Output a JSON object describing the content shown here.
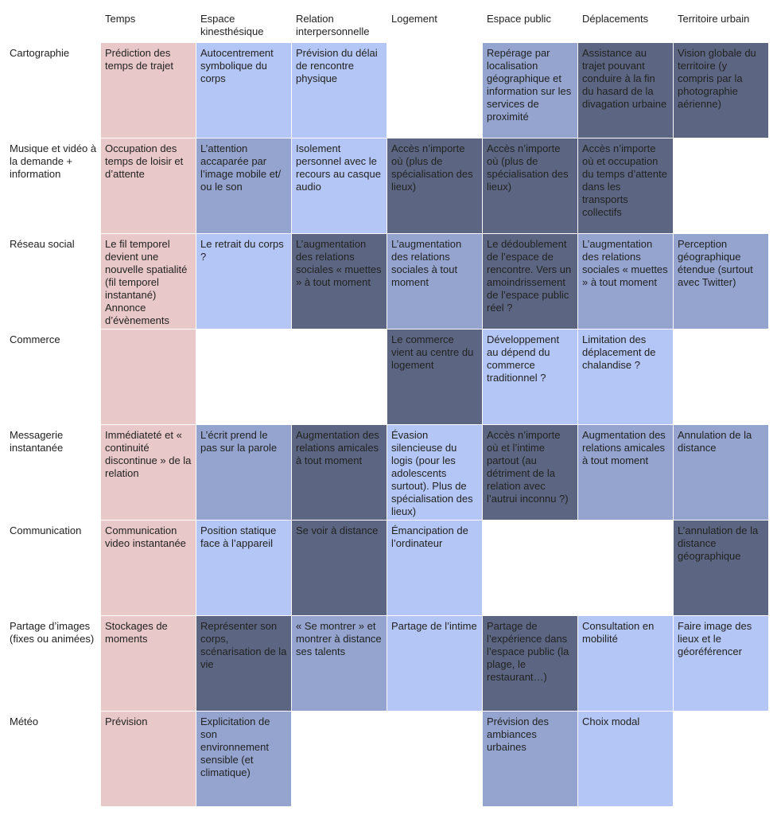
{
  "columns": [
    "Temps",
    "Espace kinesthésique",
    "Relation interpersonnelle",
    "Logement",
    "Espace public",
    "Déplacements",
    "Territoire urbain"
  ],
  "palette": {
    "pink": "#e9c8c9",
    "light": "#b4c6f6",
    "mid": "#94a4cf",
    "dark": "#5c6682",
    "empty": "#ffffff"
  },
  "rows": [
    {
      "label": "Cartographie",
      "cells": [
        {
          "text": "Prédiction des temps de trajet",
          "tone": "pink"
        },
        {
          "text": "Autocentrement symbolique du corps",
          "tone": "light"
        },
        {
          "text": "Prévision du délai de rencontre physique",
          "tone": "light"
        },
        {
          "text": "",
          "tone": "empty"
        },
        {
          "text": "Repérage par localisation géographique et information sur les services de proximité",
          "tone": "mid"
        },
        {
          "text": "Assistance au trajet pouvant conduire à la fin du hasard de la divagation urbaine",
          "tone": "dark"
        },
        {
          "text": "Vision globale du territoire (y compris par la photographie aérienne)",
          "tone": "dark"
        }
      ]
    },
    {
      "label": "Musique et vidéo à la demande + information",
      "cells": [
        {
          "text": "Occupation des temps de loisir et d’attente",
          "tone": "pink"
        },
        {
          "text": "L’attention accaparée par l’image mobile et/ ou le son",
          "tone": "mid"
        },
        {
          "text": "Isolement personnel avec le recours au casque audio",
          "tone": "light"
        },
        {
          "text": "Accès n’importe où (plus de spécialisation des lieux)",
          "tone": "dark"
        },
        {
          "text": "Accès n’importe où (plus de spécialisation des lieux)",
          "tone": "dark"
        },
        {
          "text": "Accès n’importe où et occupation du temps d’attente dans les transports collectifs",
          "tone": "dark"
        },
        {
          "text": "",
          "tone": "empty"
        }
      ]
    },
    {
      "label": "Réseau social",
      "cells": [
        {
          "text": "Le fil temporel devient une nouvelle spatialité (fil temporel instantané) Annonce d’évènements",
          "tone": "pink"
        },
        {
          "text": "Le retrait du corps ?",
          "tone": "light"
        },
        {
          "text": "L’augmentation des relations sociales « muettes » à tout moment",
          "tone": "dark"
        },
        {
          "text": "L’augmentation des relations sociales à tout moment",
          "tone": "mid"
        },
        {
          "text": "Le dédoublement de l’espace de rencontre. Vers un amoindrissement de l’espace public réel ?",
          "tone": "dark"
        },
        {
          "text": "L’augmentation des relations sociales « muettes » à tout moment",
          "tone": "mid"
        },
        {
          "text": "Perception géographique étendue (surtout avec Twitter)",
          "tone": "mid"
        }
      ]
    },
    {
      "label": "Commerce",
      "cells": [
        {
          "text": "",
          "tone": "pink"
        },
        {
          "text": "",
          "tone": "empty"
        },
        {
          "text": "",
          "tone": "empty"
        },
        {
          "text": "Le commerce vient au centre du logement",
          "tone": "dark"
        },
        {
          "text": "Développement au dépend du commerce traditionnel ?",
          "tone": "light"
        },
        {
          "text": "Limitation des déplacement de chalandise ?",
          "tone": "light"
        },
        {
          "text": "",
          "tone": "empty"
        }
      ]
    },
    {
      "label": "Messagerie instantanée",
      "cells": [
        {
          "text": "Immédiateté et « continuité discontinue » de la relation",
          "tone": "pink"
        },
        {
          "text": "L’écrit prend le pas sur la parole",
          "tone": "mid"
        },
        {
          "text": "Augmentation des relations amicales à tout moment",
          "tone": "dark"
        },
        {
          "text": "Évasion silencieuse du logis (pour les adolescents surtout). Plus de spécialisation des lieux)",
          "tone": "light"
        },
        {
          "text": "Accès n’importe où et l’intime partout (au détriment de la relation avec l’autrui inconnu ?)",
          "tone": "dark"
        },
        {
          "text": "Augmentation des relations amicales à tout moment",
          "tone": "mid"
        },
        {
          "text": "Annulation de la distance",
          "tone": "mid"
        }
      ]
    },
    {
      "label": "Communication",
      "cells": [
        {
          "text": "Communication video instantanée",
          "tone": "pink"
        },
        {
          "text": "Position statique face à l’appareil",
          "tone": "light"
        },
        {
          "text": "Se voir à distance",
          "tone": "dark"
        },
        {
          "text": "Émancipation de l’ordinateur",
          "tone": "light"
        },
        {
          "text": "",
          "tone": "empty"
        },
        {
          "text": "",
          "tone": "empty"
        },
        {
          "text": "L’annulation de la distance géographique",
          "tone": "dark"
        }
      ]
    },
    {
      "label": "Partage d’images (fixes ou animées)",
      "cells": [
        {
          "text": "Stockages de moments",
          "tone": "pink"
        },
        {
          "text": "Représenter son corps, scénarisation de la vie",
          "tone": "dark"
        },
        {
          "text": "« Se montrer » et montrer à distance ses talents",
          "tone": "mid"
        },
        {
          "text": "Partage de l’intime",
          "tone": "light"
        },
        {
          "text": "Partage de l’expérience dans l’espace public (la plage, le restaurant…)",
          "tone": "dark"
        },
        {
          "text": "Consultation en mobilité",
          "tone": "light"
        },
        {
          "text": "Faire image des lieux et le géoréférencer",
          "tone": "light"
        }
      ]
    },
    {
      "label": "Météo",
      "cells": [
        {
          "text": "Prévision",
          "tone": "pink"
        },
        {
          "text": "Explicitation de son environnement sensible (et climatique)",
          "tone": "mid"
        },
        {
          "text": "",
          "tone": "empty"
        },
        {
          "text": "",
          "tone": "empty"
        },
        {
          "text": "Prévision des ambiances urbaines",
          "tone": "mid"
        },
        {
          "text": "Choix modal",
          "tone": "light"
        },
        {
          "text": "",
          "tone": "empty"
        }
      ]
    }
  ]
}
